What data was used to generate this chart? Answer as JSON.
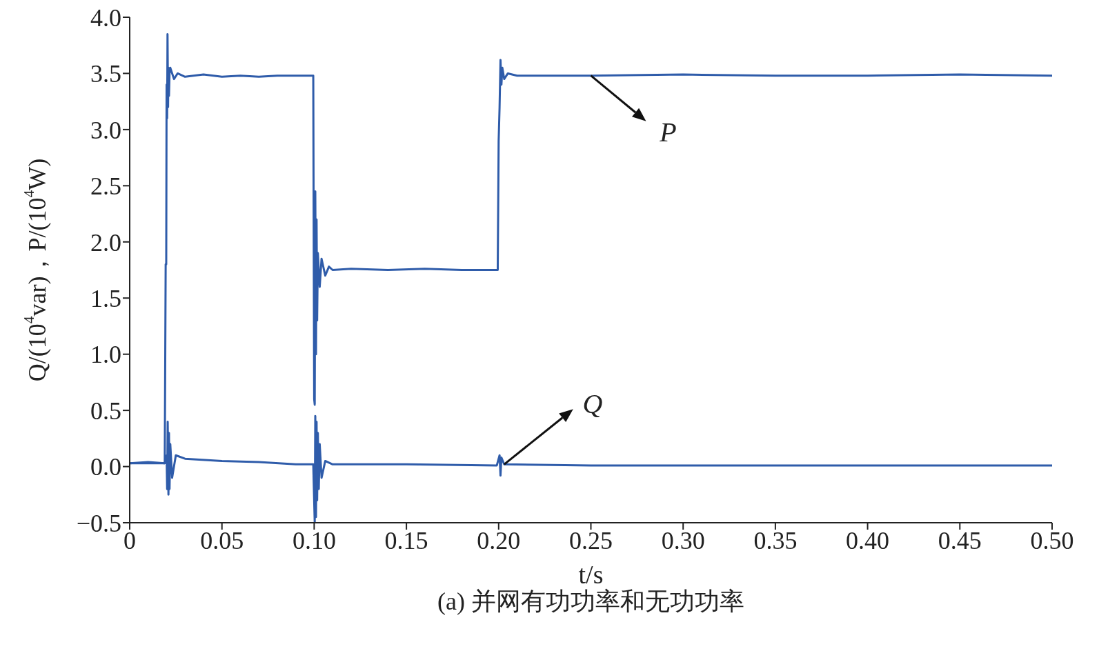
{
  "chart_data": {
    "type": "line",
    "xlabel": "t/s",
    "ylabel": "Q/(10$^{4}$var)，P/(10$^{4}$W)",
    "xlim": [
      0,
      0.5
    ],
    "xticks": [
      {
        "value": 0,
        "label": "0"
      },
      0.05,
      {
        "value": 0.1,
        "label": "0.10"
      },
      0.15,
      {
        "value": 0.2,
        "label": "0.20"
      },
      0.25,
      {
        "value": 0.3,
        "label": "0.30"
      },
      0.35,
      {
        "value": 0.4,
        "label": "0.40"
      },
      0.45,
      {
        "value": 0.5,
        "label": "0.50"
      }
    ],
    "ylim": [
      -0.5,
      4.0
    ],
    "yticks": [
      {
        "value": -0.5,
        "label": "−0.5"
      },
      {
        "value": 0,
        "label": "0.0"
      },
      0.5,
      {
        "value": 1,
        "label": "1.0"
      },
      1.5,
      {
        "value": 2,
        "label": "2.0"
      },
      2.5,
      {
        "value": 3,
        "label": "3.0"
      },
      3.5,
      {
        "value": 4,
        "label": "4.0"
      }
    ],
    "marker": "none",
    "line_style": "solid",
    "series": [
      {
        "color": "#2f5caa",
        "x": [
          0,
          0.019,
          0.0195,
          0.0198,
          0.02,
          0.0203,
          0.0205,
          0.0208,
          0.021,
          0.0213,
          0.0216,
          0.022,
          0.024,
          0.026,
          0.03,
          0.04,
          0.05,
          0.06,
          0.07,
          0.08,
          0.09,
          0.0995,
          0.1,
          0.1003,
          0.1006,
          0.101,
          0.1013,
          0.1016,
          0.102,
          0.103,
          0.104,
          0.106,
          0.108,
          0.11,
          0.12,
          0.14,
          0.16,
          0.18,
          0.199,
          0.1995,
          0.2,
          0.2005,
          0.201,
          0.2015,
          0.202,
          0.203,
          0.205,
          0.21,
          0.25,
          0.3,
          0.35,
          0.4,
          0.45,
          0.5
        ],
        "values": [
          0.03,
          0.03,
          1.8,
          1.8,
          3.4,
          3.1,
          3.85,
          3.2,
          3.55,
          3.3,
          3.5,
          3.55,
          3.45,
          3.5,
          3.47,
          3.49,
          3.47,
          3.48,
          3.47,
          3.48,
          3.48,
          3.48,
          0.6,
          0.55,
          2.45,
          1.0,
          2.2,
          1.3,
          1.9,
          1.6,
          1.85,
          1.7,
          1.78,
          1.75,
          1.76,
          1.75,
          1.76,
          1.75,
          1.75,
          1.75,
          2.9,
          3.2,
          3.62,
          3.4,
          3.55,
          3.45,
          3.5,
          3.48,
          3.48,
          3.49,
          3.48,
          3.48,
          3.49,
          3.48
        ]
      },
      {
        "color": "#2f5caa",
        "x": [
          0,
          0.01,
          0.019,
          0.02,
          0.0203,
          0.0206,
          0.021,
          0.0213,
          0.0216,
          0.022,
          0.023,
          0.025,
          0.03,
          0.05,
          0.07,
          0.09,
          0.0995,
          0.1003,
          0.1006,
          0.101,
          0.1013,
          0.1016,
          0.102,
          0.1025,
          0.103,
          0.104,
          0.106,
          0.11,
          0.15,
          0.199,
          0.2005,
          0.201,
          0.2015,
          0.203,
          0.25,
          0.3,
          0.35,
          0.4,
          0.45,
          0.5
        ],
        "values": [
          0.03,
          0.04,
          0.03,
          0.1,
          -0.2,
          0.4,
          -0.25,
          0.3,
          -0.2,
          0.2,
          -0.1,
          0.1,
          0.07,
          0.05,
          0.04,
          0.02,
          0.02,
          -0.5,
          0.45,
          -0.45,
          0.4,
          -0.3,
          0.3,
          -0.2,
          0.2,
          -0.1,
          0.05,
          0.02,
          0.02,
          0.01,
          0.1,
          -0.08,
          0.08,
          0.02,
          0.01,
          0.01,
          0.01,
          0.01,
          0.01,
          0.01
        ]
      }
    ],
    "annotations": [
      {
        "text": "P",
        "x": 0.25,
        "y": 3.48
      },
      {
        "text": "Q",
        "x": 0.203,
        "y": 0.02
      },
      "(a) 并网有功功率和无功功率"
    ]
  }
}
